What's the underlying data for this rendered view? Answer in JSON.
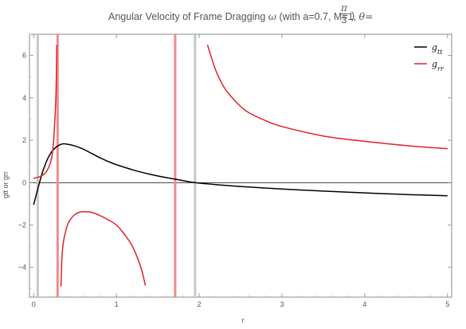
{
  "chart_data": {
    "type": "line",
    "title": {
      "prefix": "Angular Velocity of Frame Dragging ",
      "symbol": "ω",
      "params": " (with a=0.7, M=1, ",
      "theta": "θ=",
      "frac_num": "π",
      "frac_den": "3",
      "close": ")"
    },
    "xlabel": "r",
    "ylabel": "gtt or grr",
    "xlim": [
      -0.05,
      5.05
    ],
    "ylim": [
      -5.4,
      7.0
    ],
    "x_ticks": [
      0,
      1,
      2,
      3,
      4,
      5
    ],
    "y_ticks": [
      -4,
      -2,
      0,
      2,
      4,
      6
    ],
    "legend_position": "top-right",
    "vertical_lines": [
      {
        "x": 0.05,
        "color": "#c8c8c8"
      },
      {
        "x": 0.29,
        "color": "#f08c8c"
      },
      {
        "x": 1.71,
        "color": "#f08c8c"
      },
      {
        "x": 1.95,
        "color": "#c8c8c8"
      }
    ],
    "series": [
      {
        "name": "gtt",
        "legend_base": "g",
        "legend_sub": "tt",
        "color": "#000000",
        "points": [
          [
            0,
            -1.05
          ],
          [
            0.05,
            -0.3
          ],
          [
            0.1,
            0.4
          ],
          [
            0.15,
            0.95
          ],
          [
            0.2,
            1.35
          ],
          [
            0.25,
            1.6
          ],
          [
            0.3,
            1.75
          ],
          [
            0.35,
            1.83
          ],
          [
            0.4,
            1.82
          ],
          [
            0.5,
            1.73
          ],
          [
            0.6,
            1.58
          ],
          [
            0.7,
            1.38
          ],
          [
            0.8,
            1.18
          ],
          [
            0.9,
            1.0
          ],
          [
            1.0,
            0.85
          ],
          [
            1.2,
            0.6
          ],
          [
            1.4,
            0.4
          ],
          [
            1.6,
            0.24
          ],
          [
            1.8,
            0.1
          ],
          [
            1.95,
            0.0
          ],
          [
            2.2,
            -0.09
          ],
          [
            2.5,
            -0.18
          ],
          [
            3.0,
            -0.3
          ],
          [
            3.5,
            -0.4
          ],
          [
            4.0,
            -0.48
          ],
          [
            4.5,
            -0.56
          ],
          [
            5.0,
            -0.62
          ]
        ]
      },
      {
        "name": "grr",
        "legend_base": "g",
        "legend_sub": "rr",
        "color": "#e0202a",
        "segments": [
          [
            [
              0,
              0.2
            ],
            [
              0.05,
              0.25
            ],
            [
              0.1,
              0.33
            ],
            [
              0.15,
              0.5
            ],
            [
              0.2,
              0.9
            ],
            [
              0.23,
              1.5
            ],
            [
              0.25,
              2.5
            ],
            [
              0.27,
              4.2
            ],
            [
              0.28,
              6.5
            ]
          ],
          [
            [
              0.33,
              -4.9
            ],
            [
              0.35,
              -3.1
            ],
            [
              0.4,
              -2.1
            ],
            [
              0.45,
              -1.7
            ],
            [
              0.5,
              -1.5
            ],
            [
              0.55,
              -1.4
            ],
            [
              0.6,
              -1.37
            ],
            [
              0.7,
              -1.4
            ],
            [
              0.8,
              -1.55
            ],
            [
              0.9,
              -1.75
            ],
            [
              1.0,
              -2.0
            ],
            [
              1.1,
              -2.45
            ],
            [
              1.2,
              -3.05
            ],
            [
              1.3,
              -4.05
            ],
            [
              1.35,
              -4.85
            ]
          ],
          [
            [
              2.1,
              6.5
            ],
            [
              2.2,
              5.3
            ],
            [
              2.3,
              4.5
            ],
            [
              2.4,
              4.0
            ],
            [
              2.5,
              3.6
            ],
            [
              2.6,
              3.3
            ],
            [
              2.8,
              2.93
            ],
            [
              3.0,
              2.65
            ],
            [
              3.5,
              2.2
            ],
            [
              4.0,
              1.95
            ],
            [
              4.5,
              1.75
            ],
            [
              5.0,
              1.6
            ]
          ]
        ]
      }
    ]
  }
}
